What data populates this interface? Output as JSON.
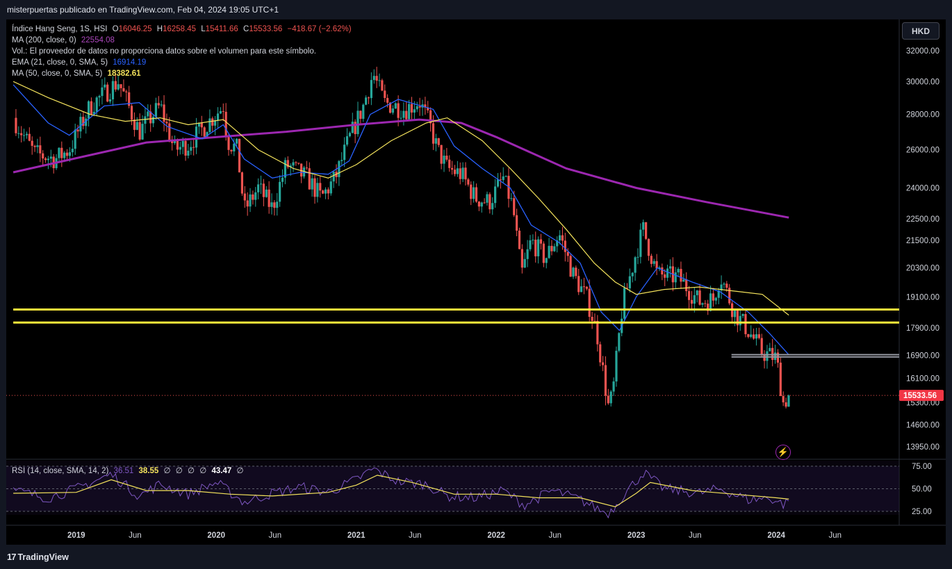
{
  "header": {
    "published": "misterpuertas publicado en TradingView.com, Feb 04, 2024 19:05 UTC+1"
  },
  "currency_button": "HKD",
  "legend": {
    "symbol": "Índice Hang Seng, 1S, HSI",
    "o_label": "O",
    "o_value": "16046.25",
    "h_label": "H",
    "h_value": "16258.45",
    "l_label": "L",
    "l_value": "15411.66",
    "c_label": "C",
    "c_value": "15533.56",
    "change": "−418.67 (−2.62%)",
    "ma200_label": "MA (200, close, 0)",
    "ma200_value": "22554.08",
    "vol_note": "Vol.: El proveedor de datos no proporciona datos sobre el volumen para este símbolo.",
    "ema21_label": "EMA (21, close, 0, SMA, 5)",
    "ema21_value": "16914.19",
    "ma50_label": "MA (50, close, 0, SMA, 5)",
    "ma50_value": "18382.61"
  },
  "rsi_legend": {
    "label": "RSI (14, close, SMA, 14, 2)",
    "rsi_value": "36.51",
    "ma_value": "38.55",
    "e1": "∅",
    "e2": "∅",
    "e3": "∅",
    "e4": "∅",
    "div_value": "43.47",
    "e5": "∅"
  },
  "colors": {
    "up": "#26a69a",
    "down": "#ef5350",
    "ma200": "#9c27b0",
    "ema21": "#2962ff",
    "ma50": "#f4e35c",
    "hline_yellow": "#ffeb3b",
    "hline_grey": "#9598a1",
    "last_price_bg": "#f23645"
  },
  "price_badge": "15533.56",
  "footer": {
    "brand": "TradingView",
    "logo_icon": "tradingview-logo-icon"
  },
  "icons": {
    "bolt": "lightning-icon"
  },
  "chart_data": {
    "type": "candlestick",
    "title": "Índice Hang Seng, 1S, HSI",
    "price_axis_ticks": [
      32000,
      30000,
      28000,
      26000,
      24000,
      22500,
      21500,
      20300,
      19100,
      17900,
      16900,
      16100,
      15300,
      14600,
      13950
    ],
    "price_axis_labels": [
      "32000.00",
      "30000.00",
      "28000.00",
      "26000.00",
      "24000.00",
      "22500.00",
      "21500.00",
      "20300.00",
      "19100.00",
      "17900.00",
      "16900.00",
      "16100.00",
      "15300.00",
      "14600.00",
      "13950.00"
    ],
    "scale": "log",
    "rsi_axis_ticks": [
      75,
      50,
      25
    ],
    "rsi_axis_labels": [
      "75.00",
      "50.00",
      "25.00"
    ],
    "time_axis": [
      {
        "t": 2019.0,
        "label": "2019",
        "bold": true
      },
      {
        "t": 2019.42,
        "label": "Jun",
        "bold": false
      },
      {
        "t": 2020.0,
        "label": "2020",
        "bold": true
      },
      {
        "t": 2020.42,
        "label": "Jun",
        "bold": false
      },
      {
        "t": 2021.0,
        "label": "2021",
        "bold": true
      },
      {
        "t": 2021.42,
        "label": "Jun",
        "bold": false
      },
      {
        "t": 2022.0,
        "label": "2022",
        "bold": true
      },
      {
        "t": 2022.42,
        "label": "Jun",
        "bold": false
      },
      {
        "t": 2023.0,
        "label": "2023",
        "bold": true
      },
      {
        "t": 2023.42,
        "label": "Jun",
        "bold": false
      },
      {
        "t": 2024.0,
        "label": "2024",
        "bold": true
      },
      {
        "t": 2024.42,
        "label": "Jun",
        "bold": false
      }
    ],
    "close_path": [
      [
        2018.55,
        27800
      ],
      [
        2018.7,
        25800
      ],
      [
        2018.85,
        25500
      ],
      [
        2018.95,
        26000
      ],
      [
        2019.1,
        28500
      ],
      [
        2019.3,
        30000
      ],
      [
        2019.45,
        27000
      ],
      [
        2019.6,
        28500
      ],
      [
        2019.7,
        26000
      ],
      [
        2019.8,
        26300
      ],
      [
        2019.95,
        27600
      ],
      [
        2020.05,
        28500
      ],
      [
        2020.08,
        26500
      ],
      [
        2020.15,
        26000
      ],
      [
        2020.2,
        22900
      ],
      [
        2020.3,
        24000
      ],
      [
        2020.4,
        23000
      ],
      [
        2020.5,
        25200
      ],
      [
        2020.65,
        24500
      ],
      [
        2020.75,
        23500
      ],
      [
        2020.85,
        24500
      ],
      [
        2020.95,
        26600
      ],
      [
        2021.05,
        28500
      ],
      [
        2021.12,
        30500
      ],
      [
        2021.2,
        28700
      ],
      [
        2021.35,
        28300
      ],
      [
        2021.45,
        28800
      ],
      [
        2021.52,
        27500
      ],
      [
        2021.58,
        26000
      ],
      [
        2021.65,
        25000
      ],
      [
        2021.75,
        24700
      ],
      [
        2021.85,
        23500
      ],
      [
        2021.95,
        23300
      ],
      [
        2022.05,
        24500
      ],
      [
        2022.12,
        23000
      ],
      [
        2022.18,
        20000
      ],
      [
        2022.25,
        21500
      ],
      [
        2022.35,
        20700
      ],
      [
        2022.45,
        21800
      ],
      [
        2022.55,
        20000
      ],
      [
        2022.65,
        19000
      ],
      [
        2022.72,
        17700
      ],
      [
        2022.8,
        15200
      ],
      [
        2022.83,
        15500
      ],
      [
        2022.9,
        18700
      ],
      [
        2023.0,
        21000
      ],
      [
        2023.05,
        22000
      ],
      [
        2023.15,
        20000
      ],
      [
        2023.3,
        19900
      ],
      [
        2023.45,
        18900
      ],
      [
        2023.55,
        19000
      ],
      [
        2023.6,
        20000
      ],
      [
        2023.7,
        18500
      ],
      [
        2023.8,
        17800
      ],
      [
        2023.9,
        17000
      ],
      [
        2024.0,
        16800
      ],
      [
        2024.05,
        15300
      ],
      [
        2024.09,
        15533.56
      ]
    ],
    "ma200_path": [
      [
        2018.55,
        24800
      ],
      [
        2019.5,
        26400
      ],
      [
        2020.5,
        27000
      ],
      [
        2021.0,
        27400
      ],
      [
        2021.45,
        27700
      ],
      [
        2021.75,
        27500
      ],
      [
        2022.0,
        26700
      ],
      [
        2022.5,
        25000
      ],
      [
        2023.0,
        24000
      ],
      [
        2023.5,
        23300
      ],
      [
        2024.09,
        22554.08
      ]
    ],
    "ema21_path": [
      [
        2018.55,
        29800
      ],
      [
        2018.8,
        27500
      ],
      [
        2018.95,
        26800
      ],
      [
        2019.2,
        28500
      ],
      [
        2019.45,
        28700
      ],
      [
        2019.65,
        27300
      ],
      [
        2019.9,
        26600
      ],
      [
        2020.05,
        27400
      ],
      [
        2020.2,
        25500
      ],
      [
        2020.4,
        24500
      ],
      [
        2020.6,
        24800
      ],
      [
        2020.8,
        24700
      ],
      [
        2020.95,
        25400
      ],
      [
        2021.1,
        28000
      ],
      [
        2021.3,
        28900
      ],
      [
        2021.55,
        28300
      ],
      [
        2021.7,
        26200
      ],
      [
        2021.9,
        25000
      ],
      [
        2022.1,
        24000
      ],
      [
        2022.25,
        22200
      ],
      [
        2022.45,
        21400
      ],
      [
        2022.6,
        20500
      ],
      [
        2022.75,
        18500
      ],
      [
        2022.88,
        17800
      ],
      [
        2023.0,
        19100
      ],
      [
        2023.15,
        20300
      ],
      [
        2023.4,
        19700
      ],
      [
        2023.6,
        19300
      ],
      [
        2023.8,
        18500
      ],
      [
        2023.95,
        17700
      ],
      [
        2024.09,
        16914.19
      ]
    ],
    "ma50_path": [
      [
        2018.55,
        30000
      ],
      [
        2018.8,
        29000
      ],
      [
        2019.1,
        28000
      ],
      [
        2019.35,
        27600
      ],
      [
        2019.6,
        27800
      ],
      [
        2019.8,
        27400
      ],
      [
        2020.05,
        27700
      ],
      [
        2020.3,
        26000
      ],
      [
        2020.55,
        25000
      ],
      [
        2020.8,
        24500
      ],
      [
        2021.0,
        25200
      ],
      [
        2021.25,
        26500
      ],
      [
        2021.5,
        27500
      ],
      [
        2021.65,
        27800
      ],
      [
        2021.9,
        26500
      ],
      [
        2022.1,
        25000
      ],
      [
        2022.3,
        23500
      ],
      [
        2022.5,
        22000
      ],
      [
        2022.7,
        20500
      ],
      [
        2022.85,
        19700
      ],
      [
        2023.0,
        19200
      ],
      [
        2023.2,
        19400
      ],
      [
        2023.45,
        19500
      ],
      [
        2023.6,
        19400
      ],
      [
        2023.75,
        19300
      ],
      [
        2023.9,
        19200
      ],
      [
        2024.09,
        18382.61
      ]
    ],
    "horizontal_levels": [
      {
        "price": 18600,
        "color": "yellow",
        "from": 2018.55,
        "to": 2024.9
      },
      {
        "price": 18100,
        "color": "yellow",
        "from": 2018.55,
        "to": 2024.9
      },
      {
        "price": 16920,
        "color": "grey",
        "from": 2023.68,
        "to": 2024.9
      },
      {
        "price": 16840,
        "color": "grey",
        "from": 2023.68,
        "to": 2024.9
      }
    ],
    "last_price": 15533.56,
    "rsi_path": [
      [
        2018.55,
        48
      ],
      [
        2018.8,
        40
      ],
      [
        2019.0,
        50
      ],
      [
        2019.25,
        66
      ],
      [
        2019.45,
        42
      ],
      [
        2019.6,
        55
      ],
      [
        2019.8,
        44
      ],
      [
        2020.0,
        57
      ],
      [
        2020.2,
        35
      ],
      [
        2020.4,
        45
      ],
      [
        2020.6,
        52
      ],
      [
        2020.8,
        46
      ],
      [
        2021.0,
        60
      ],
      [
        2021.12,
        72
      ],
      [
        2021.3,
        58
      ],
      [
        2021.5,
        55
      ],
      [
        2021.65,
        42
      ],
      [
        2021.85,
        40
      ],
      [
        2022.05,
        48
      ],
      [
        2022.2,
        32
      ],
      [
        2022.4,
        48
      ],
      [
        2022.6,
        38
      ],
      [
        2022.8,
        22
      ],
      [
        2022.92,
        45
      ],
      [
        2023.05,
        68
      ],
      [
        2023.2,
        50
      ],
      [
        2023.45,
        45
      ],
      [
        2023.6,
        50
      ],
      [
        2023.8,
        38
      ],
      [
        2023.95,
        40
      ],
      [
        2024.05,
        33
      ],
      [
        2024.09,
        36.51
      ]
    ],
    "rsi_ma_path": [
      [
        2018.55,
        45
      ],
      [
        2019.0,
        46
      ],
      [
        2019.25,
        60
      ],
      [
        2019.5,
        48
      ],
      [
        2019.8,
        48
      ],
      [
        2020.1,
        44
      ],
      [
        2020.4,
        42
      ],
      [
        2020.8,
        46
      ],
      [
        2021.0,
        54
      ],
      [
        2021.15,
        65
      ],
      [
        2021.4,
        57
      ],
      [
        2021.7,
        44
      ],
      [
        2022.0,
        44
      ],
      [
        2022.3,
        40
      ],
      [
        2022.6,
        40
      ],
      [
        2022.85,
        30
      ],
      [
        2023.0,
        45
      ],
      [
        2023.1,
        57
      ],
      [
        2023.4,
        48
      ],
      [
        2023.7,
        44
      ],
      [
        2024.0,
        40
      ],
      [
        2024.09,
        38.55
      ]
    ]
  }
}
